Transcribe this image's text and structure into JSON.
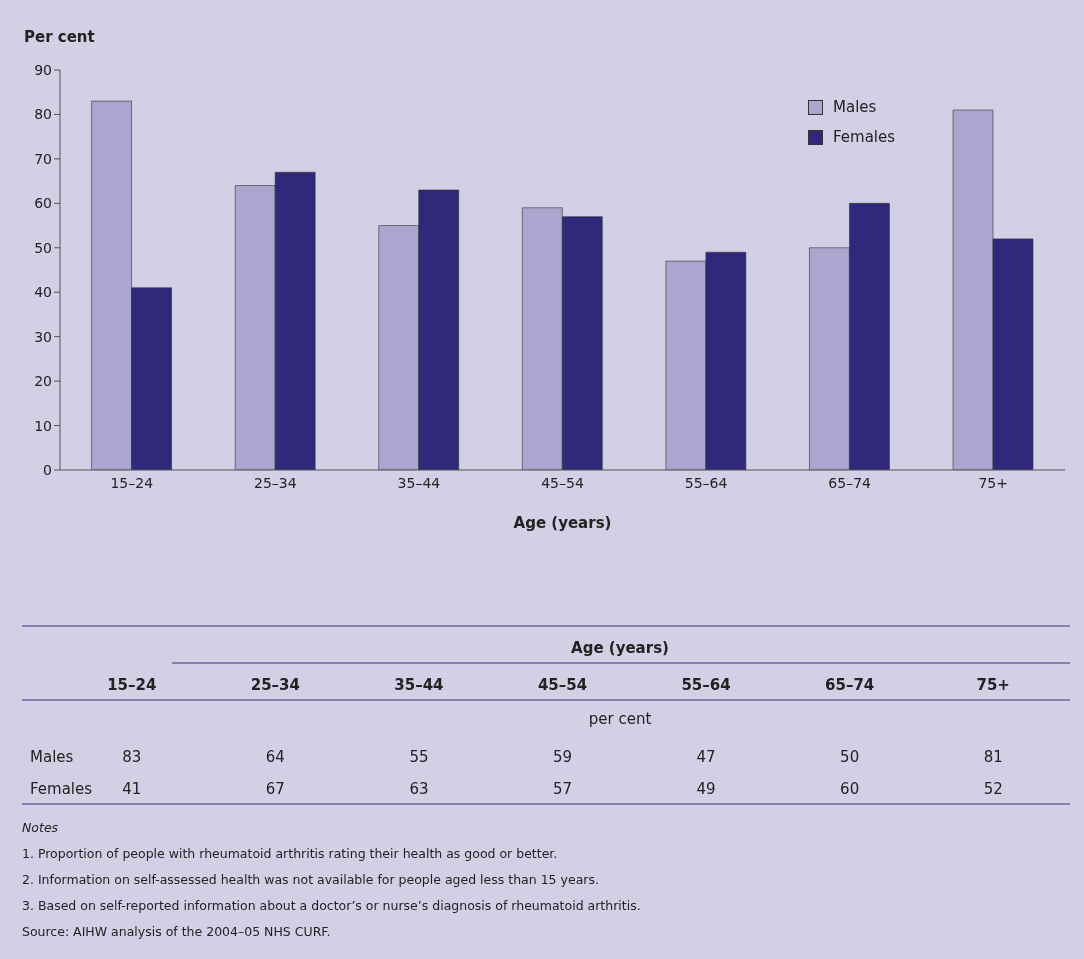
{
  "chart_data": {
    "type": "bar",
    "ylabel": "Per cent",
    "xlabel": "Age (years)",
    "categories": [
      "15–24",
      "25–34",
      "35–44",
      "45–54",
      "55–64",
      "65–74",
      "75+"
    ],
    "series": [
      {
        "name": "Males",
        "color": "#aba6cf",
        "values": [
          83,
          64,
          55,
          59,
          47,
          50,
          81
        ]
      },
      {
        "name": "Females",
        "color": "#30287a",
        "values": [
          41,
          67,
          63,
          57,
          49,
          60,
          52
        ]
      }
    ],
    "ylim": [
      0,
      90
    ],
    "yticks": [
      0,
      10,
      20,
      30,
      40,
      50,
      60,
      70,
      80,
      90
    ],
    "legend": "top right",
    "data_labels": true,
    "annotations": [
      "per cent",
      "Notes",
      "1.  Proportion of people with rheumatoid arthritis rating their health as good or better.",
      "2.  Information on self-assessed health was not available for people aged less than 15 years.",
      "3.  Based on self-reported information about a doctor’s or nurse’s diagnosis of rheumatoid arthritis.",
      "Source: AIHW analysis of the 2004–05 NHS CURF."
    ]
  }
}
